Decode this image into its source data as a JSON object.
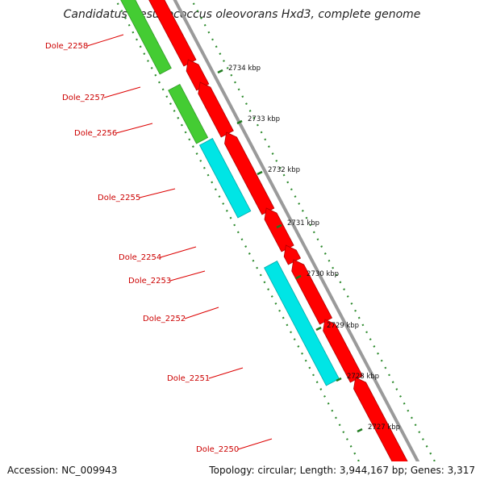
{
  "title": "Candidatus Desulfococcus oleovorans Hxd3, complete genome",
  "footer": {
    "accession": "Accession: NC_009943",
    "summary": "Topology: circular; Length: 3,944,167 bp; Genes: 3,317"
  },
  "colors": {
    "backbone": "#9a9a9a",
    "cds": "#ff0000",
    "green_feature": "#44cc33",
    "cyan_feature": "#00e5e5",
    "gene_label": "#cc0000",
    "dotted_ring": "#228822"
  },
  "gene_labels": [
    {
      "name": "Dole_2258"
    },
    {
      "name": "Dole_2257"
    },
    {
      "name": "Dole_2256"
    },
    {
      "name": "Dole_2255"
    },
    {
      "name": "Dole_2254"
    },
    {
      "name": "Dole_2253"
    },
    {
      "name": "Dole_2252"
    },
    {
      "name": "Dole_2251"
    },
    {
      "name": "Dole_2250"
    }
  ],
  "ticks": [
    {
      "label": "2734 kbp"
    },
    {
      "label": "2733 kbp"
    },
    {
      "label": "2732 kbp"
    },
    {
      "label": "2731 kbp"
    },
    {
      "label": "2730 kbp"
    },
    {
      "label": "2729 kbp"
    },
    {
      "label": "2728 kbp"
    },
    {
      "label": "2727 kbp"
    }
  ]
}
